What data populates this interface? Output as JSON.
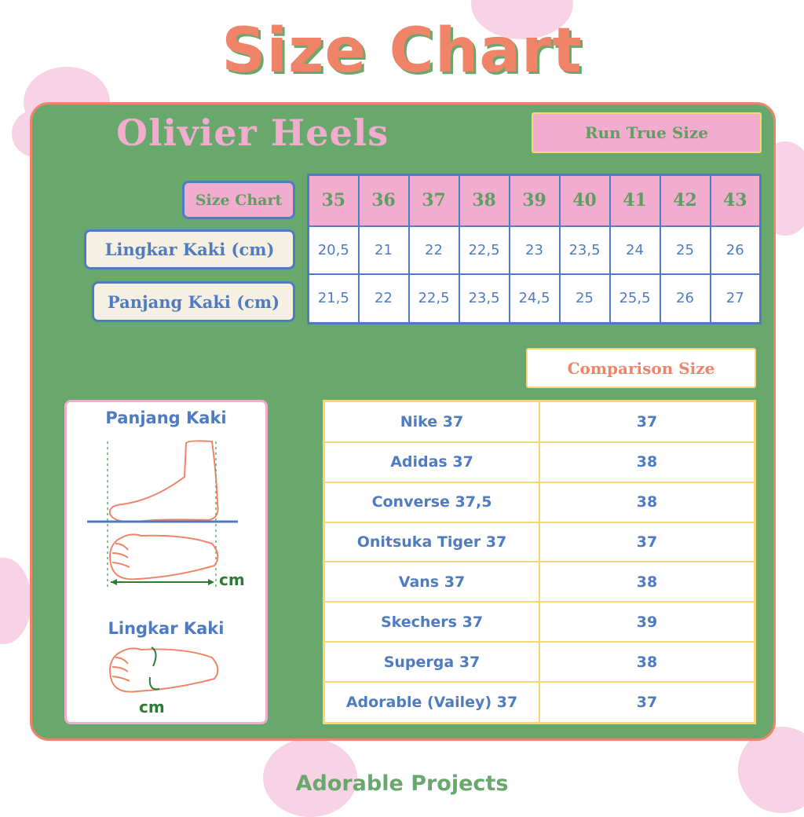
{
  "title": "Size Chart",
  "brand": "Olivier Heels",
  "fit_badge": "Run True Size",
  "size_table": {
    "header_label": "Size Chart",
    "sizes": [
      "35",
      "36",
      "37",
      "38",
      "39",
      "40",
      "41",
      "42",
      "43"
    ],
    "rows": [
      {
        "label": "Lingkar Kaki (cm)",
        "values": [
          "20,5",
          "21",
          "22",
          "22,5",
          "23",
          "23,5",
          "24",
          "25",
          "26"
        ]
      },
      {
        "label": "Panjang Kaki (cm)",
        "values": [
          "21,5",
          "22",
          "22,5",
          "23,5",
          "24,5",
          "25",
          "25,5",
          "26",
          "27"
        ]
      }
    ]
  },
  "comparison": {
    "title": "Comparison Size",
    "rows": [
      {
        "brand": "Nike 37",
        "size": "37"
      },
      {
        "brand": "Adidas 37",
        "size": "38"
      },
      {
        "brand": "Converse 37,5",
        "size": "38"
      },
      {
        "brand": "Onitsuka Tiger 37",
        "size": "37"
      },
      {
        "brand": "Vans 37",
        "size": "38"
      },
      {
        "brand": "Skechers 37",
        "size": "39"
      },
      {
        "brand": "Superga 37",
        "size": "38"
      },
      {
        "brand": "Adorable (Vailey) 37",
        "size": "37"
      }
    ]
  },
  "guide": {
    "length_title": "Panjang Kaki",
    "length_unit": "cm",
    "width_title": "Lingkar Kaki",
    "width_unit": "cm"
  },
  "footer": "Adorable Projects",
  "colors": {
    "green": "#69a86c",
    "coral": "#ef8468",
    "pink": "#f2accd",
    "blue": "#4f7cc0",
    "cream": "#f6f0e3",
    "yellow": "#f5d77a"
  }
}
